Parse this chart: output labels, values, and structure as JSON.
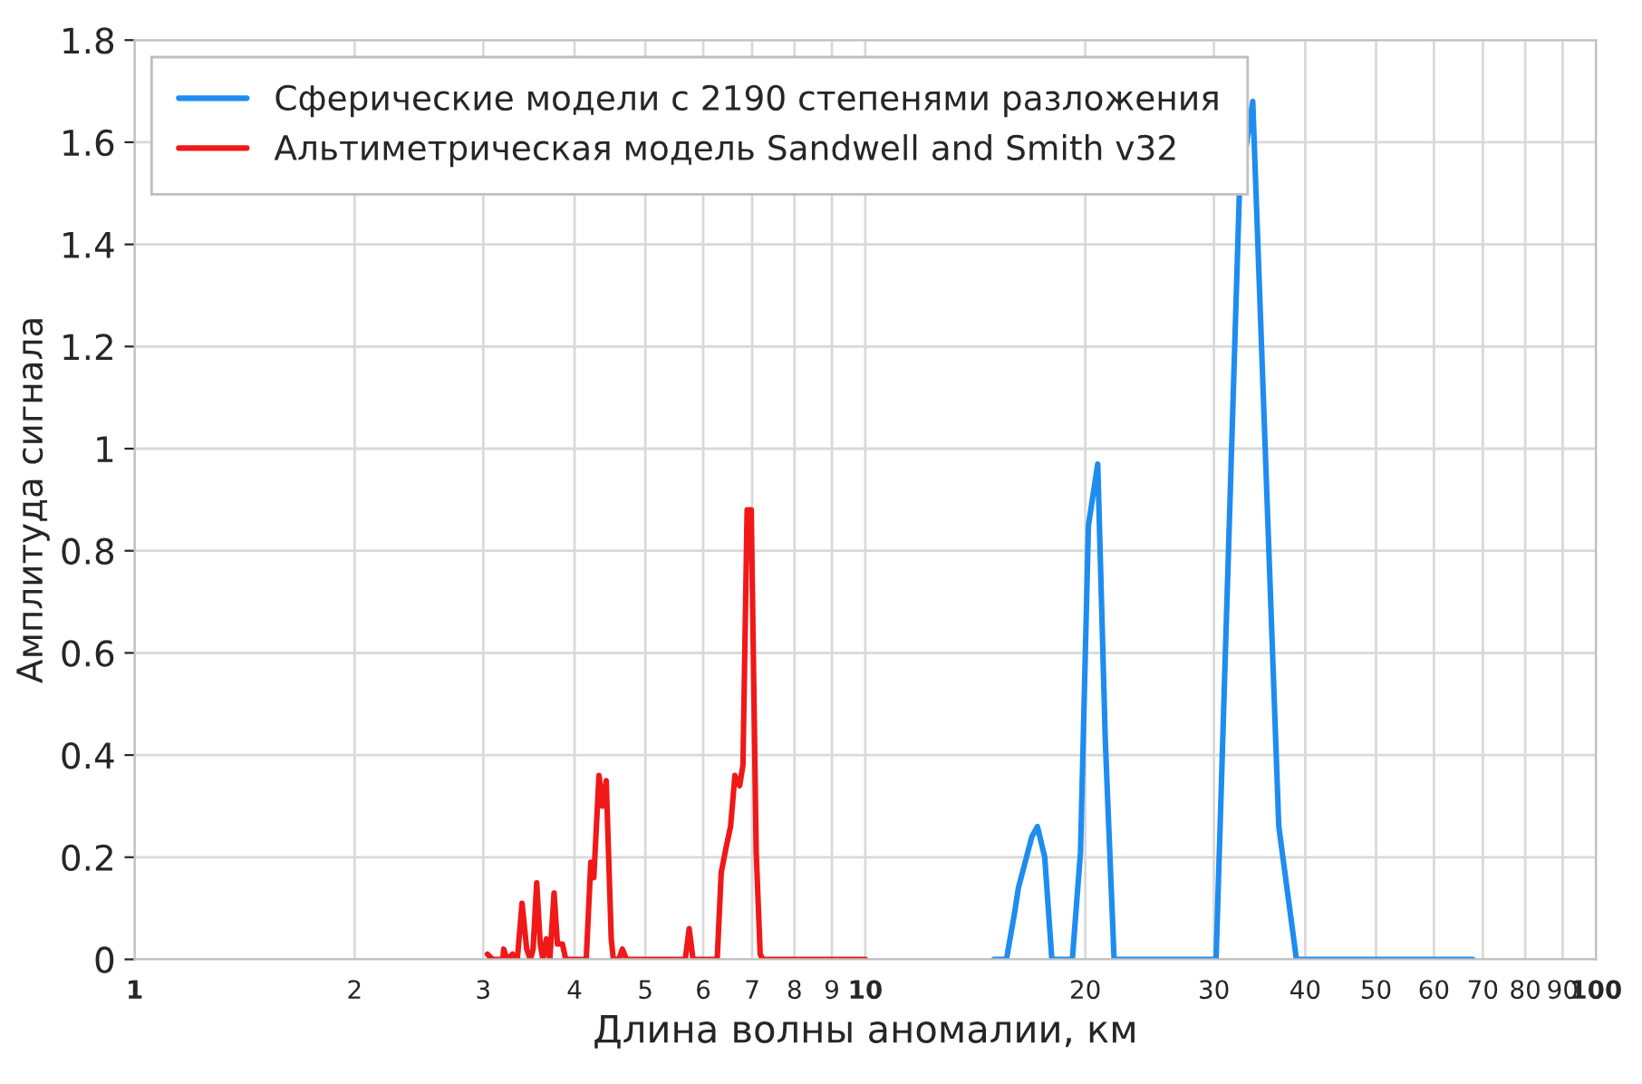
{
  "chart_data": {
    "type": "line",
    "xlabel": "Длина волны аномалии, км",
    "ylabel": "Амплитуда сигнала",
    "log": "x",
    "grid": true,
    "legend": "top left",
    "line_style": "solid",
    "marker": "none",
    "xlim": [
      1,
      100
    ],
    "xticks": [
      1,
      2,
      3,
      4,
      5,
      6,
      7,
      8,
      9,
      10,
      20,
      30,
      40,
      50,
      60,
      70,
      80,
      90,
      100
    ],
    "ylim": [
      0,
      1.8
    ],
    "yticks": [
      0,
      0.2,
      0.4,
      0.6,
      0.8,
      1,
      1.2,
      1.4,
      1.6,
      1.8
    ],
    "series": [
      {
        "name": "Сферические модели с 2190 степенями разложения",
        "color": "#1e8cf0",
        "x": [
          15.0,
          15.6,
          16.0,
          16.2,
          16.9,
          17.2,
          17.6,
          18.0,
          19.2,
          19.7,
          20.2,
          20.8,
          21.3,
          21.9,
          30.2,
          32.5,
          33.9,
          36.8,
          38.9,
          67.8
        ],
        "values": [
          0,
          0,
          0.09,
          0.14,
          0.24,
          0.26,
          0.2,
          0,
          0,
          0.21,
          0.85,
          0.97,
          0.43,
          0,
          0,
          1.5,
          1.68,
          0.26,
          0,
          0
        ]
      },
      {
        "name": "Альтиметрическая модель Sandwell and Smith v32",
        "color": "#f01818",
        "x": [
          3.04,
          3.09,
          3.19,
          3.2,
          3.23,
          3.29,
          3.34,
          3.39,
          3.44,
          3.48,
          3.51,
          3.55,
          3.59,
          3.62,
          3.66,
          3.7,
          3.75,
          3.79,
          3.85,
          3.89,
          4.15,
          4.21,
          4.25,
          4.32,
          4.37,
          4.42,
          4.49,
          4.52,
          4.6,
          4.65,
          4.71,
          5.67,
          5.74,
          5.81,
          6.27,
          6.35,
          6.45,
          6.54,
          6.63,
          6.73,
          6.8,
          6.89,
          6.98,
          7.09,
          7.18,
          7.24,
          10
        ],
        "values": [
          0.01,
          0,
          0,
          0.02,
          0,
          0.01,
          0,
          0.11,
          0.02,
          0,
          0.02,
          0.15,
          0.03,
          0,
          0.04,
          0,
          0.13,
          0.03,
          0.03,
          0,
          0,
          0.19,
          0.16,
          0.36,
          0.3,
          0.35,
          0.04,
          0,
          0,
          0.02,
          0,
          0,
          0.06,
          0,
          0,
          0.17,
          0.22,
          0.26,
          0.36,
          0.34,
          0.38,
          0.88,
          0.88,
          0.21,
          0.01,
          0,
          0
        ]
      }
    ]
  }
}
